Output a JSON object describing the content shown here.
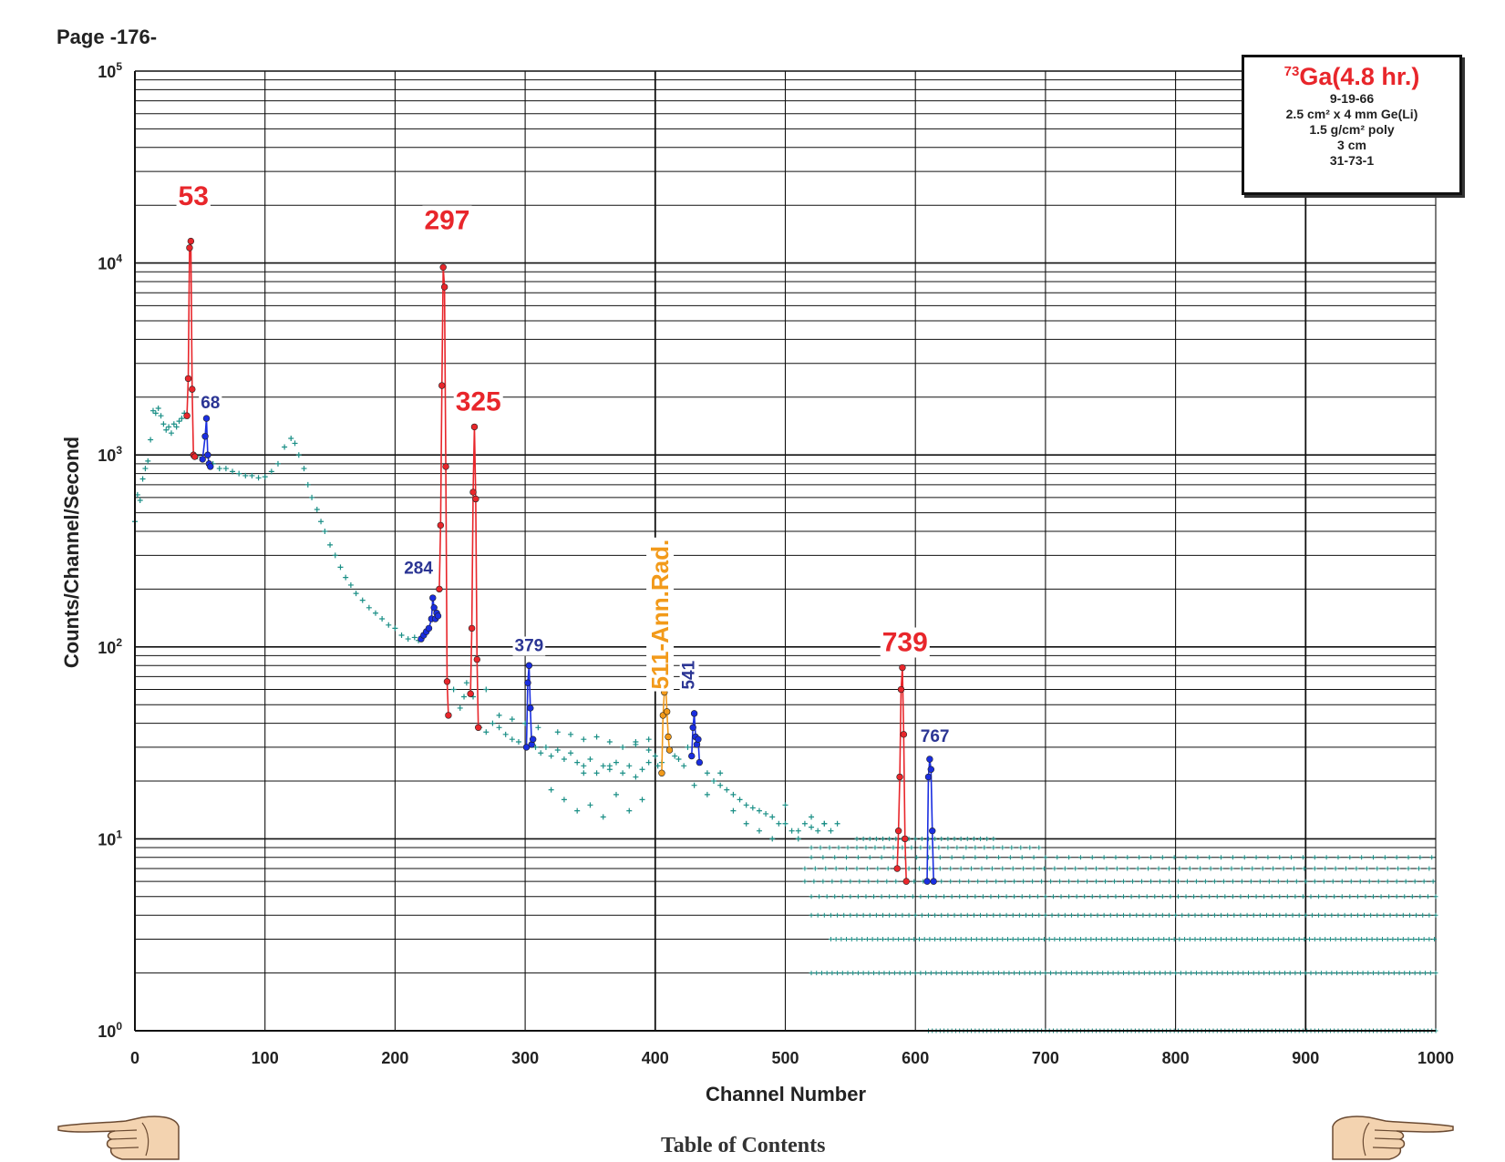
{
  "page": {
    "header": "Page -176-",
    "toc_label": "Table of Contents"
  },
  "legend": {
    "isotope_mass": "73",
    "isotope_title": "Ga(4.8 hr.)",
    "lines": [
      "9-19-66",
      "2.5 cm² x 4 mm Ge(Li)",
      "1.5 g/cm² poly",
      "3 cm",
      "31-73-1"
    ]
  },
  "colors": {
    "main_peak": "#e8262b",
    "secondary_peak": "#1a2ee0",
    "secondary_label": "#2b3594",
    "annihilation": "#f29a1a",
    "spectrum": "#1a8f86",
    "grid": "#111111"
  },
  "icons": {
    "left_nav": "hand-pointing-left-icon",
    "right_nav": "hand-pointing-right-icon"
  },
  "chart_data": {
    "type": "scatter",
    "xlabel": "Channel Number",
    "ylabel": "Counts/Channel/Second",
    "xlim": [
      0,
      1000
    ],
    "ylim": [
      1,
      100000
    ],
    "yscale": "log",
    "grid": true,
    "x_ticks": [
      "0",
      "100",
      "200",
      "300",
      "400",
      "500",
      "600",
      "700",
      "800",
      "900",
      "1000"
    ],
    "y_ticks": [
      {
        "base": "10",
        "exp": "0"
      },
      {
        "base": "10",
        "exp": "1"
      },
      {
        "base": "10",
        "exp": "2"
      },
      {
        "base": "10",
        "exp": "3"
      },
      {
        "base": "10",
        "exp": "4"
      },
      {
        "base": "10",
        "exp": "5"
      }
    ],
    "spectrum_continuum": [
      [
        0,
        450
      ],
      [
        2,
        620
      ],
      [
        4,
        580
      ],
      [
        6,
        750
      ],
      [
        8,
        850
      ],
      [
        10,
        930
      ],
      [
        12,
        1200
      ],
      [
        14,
        1700
      ],
      [
        16,
        1650
      ],
      [
        18,
        1750
      ],
      [
        20,
        1600
      ],
      [
        22,
        1450
      ],
      [
        24,
        1350
      ],
      [
        26,
        1400
      ],
      [
        28,
        1300
      ],
      [
        30,
        1450
      ],
      [
        32,
        1400
      ],
      [
        34,
        1500
      ],
      [
        36,
        1550
      ],
      [
        38,
        1650
      ],
      [
        48,
        980
      ],
      [
        60,
        900
      ],
      [
        65,
        850
      ],
      [
        70,
        850
      ],
      [
        75,
        820
      ],
      [
        80,
        800
      ],
      [
        85,
        780
      ],
      [
        90,
        780
      ],
      [
        95,
        760
      ],
      [
        100,
        770
      ],
      [
        105,
        820
      ],
      [
        110,
        900
      ],
      [
        115,
        1100
      ],
      [
        120,
        1220
      ],
      [
        123,
        1150
      ],
      [
        126,
        1000
      ],
      [
        130,
        850
      ],
      [
        133,
        700
      ],
      [
        136,
        600
      ],
      [
        140,
        520
      ],
      [
        143,
        450
      ],
      [
        146,
        400
      ],
      [
        150,
        340
      ],
      [
        154,
        300
      ],
      [
        158,
        260
      ],
      [
        162,
        230
      ],
      [
        166,
        210
      ],
      [
        170,
        190
      ],
      [
        175,
        175
      ],
      [
        180,
        160
      ],
      [
        185,
        150
      ],
      [
        190,
        140
      ],
      [
        195,
        130
      ],
      [
        200,
        125
      ],
      [
        205,
        115
      ],
      [
        210,
        110
      ],
      [
        215,
        112
      ],
      [
        218,
        108
      ],
      [
        245,
        60
      ],
      [
        250,
        48
      ],
      [
        253,
        55
      ],
      [
        255,
        65
      ],
      [
        265,
        38
      ],
      [
        270,
        36
      ],
      [
        275,
        40
      ],
      [
        280,
        38
      ],
      [
        285,
        35
      ],
      [
        290,
        33
      ],
      [
        295,
        32
      ],
      [
        308,
        30
      ],
      [
        312,
        28
      ],
      [
        316,
        30
      ],
      [
        320,
        27
      ],
      [
        325,
        29
      ],
      [
        330,
        26
      ],
      [
        335,
        28
      ],
      [
        340,
        25
      ],
      [
        345,
        24
      ],
      [
        350,
        26
      ],
      [
        355,
        22
      ],
      [
        360,
        24
      ],
      [
        365,
        23
      ],
      [
        370,
        25
      ],
      [
        375,
        22
      ],
      [
        380,
        24
      ],
      [
        385,
        21
      ],
      [
        390,
        23
      ],
      [
        395,
        25
      ],
      [
        400,
        27
      ],
      [
        402,
        24
      ],
      [
        418,
        26
      ],
      [
        422,
        24
      ],
      [
        440,
        22
      ],
      [
        445,
        20
      ],
      [
        450,
        19
      ],
      [
        455,
        18
      ],
      [
        460,
        17
      ],
      [
        465,
        16
      ],
      [
        470,
        15
      ],
      [
        475,
        14.5
      ],
      [
        480,
        14
      ],
      [
        485,
        13.5
      ],
      [
        490,
        13
      ],
      [
        495,
        12
      ],
      [
        500,
        12
      ],
      [
        505,
        11
      ],
      [
        510,
        11
      ],
      [
        515,
        12
      ],
      [
        520,
        11.5
      ],
      [
        525,
        11
      ],
      [
        530,
        12
      ],
      [
        535,
        11
      ],
      [
        540,
        12
      ]
    ],
    "spectrum_scatter_low": [
      [
        320,
        18
      ],
      [
        330,
        16
      ],
      [
        340,
        14
      ],
      [
        350,
        15
      ],
      [
        360,
        13
      ],
      [
        370,
        17
      ],
      [
        380,
        14
      ],
      [
        390,
        16
      ],
      [
        300,
        40
      ],
      [
        310,
        38
      ],
      [
        325,
        36
      ],
      [
        335,
        35
      ],
      [
        345,
        33
      ],
      [
        355,
        34
      ],
      [
        365,
        32
      ],
      [
        375,
        30
      ],
      [
        385,
        31
      ],
      [
        395,
        29
      ],
      [
        260,
        55
      ],
      [
        270,
        60
      ],
      [
        280,
        44
      ],
      [
        290,
        42
      ],
      [
        430,
        19
      ],
      [
        440,
        17
      ],
      [
        450,
        22
      ],
      [
        460,
        14
      ],
      [
        470,
        12
      ],
      [
        480,
        11
      ],
      [
        490,
        10
      ],
      [
        500,
        15
      ],
      [
        510,
        10
      ],
      [
        520,
        13
      ],
      [
        530,
        12
      ],
      [
        425,
        30
      ],
      [
        415,
        27
      ],
      [
        405,
        25
      ],
      [
        395,
        33
      ],
      [
        385,
        32
      ],
      [
        365,
        24
      ],
      [
        345,
        22
      ]
    ],
    "discrete_levels": [
      {
        "value": 10,
        "from": 555,
        "to": 660,
        "step": 5
      },
      {
        "value": 9,
        "from": 520,
        "to": 700,
        "step": 7
      },
      {
        "value": 8,
        "from": 520,
        "to": 1000,
        "step": 9
      },
      {
        "value": 7,
        "from": 515,
        "to": 1000,
        "step": 8
      },
      {
        "value": 6,
        "from": 515,
        "to": 1000,
        "step": 7
      },
      {
        "value": 5,
        "from": 520,
        "to": 1000,
        "step": 6
      },
      {
        "value": 4,
        "from": 520,
        "to": 1000,
        "step": 5
      },
      {
        "value": 3,
        "from": 535,
        "to": 1000,
        "step": 4
      },
      {
        "value": 2,
        "from": 520,
        "to": 1000,
        "step": 4
      },
      {
        "value": 1,
        "from": 610,
        "to": 1000,
        "step": 3
      }
    ],
    "peaks": [
      {
        "label": "53",
        "kind": "main",
        "label_x": 45,
        "label_y": 20000,
        "points": [
          [
            40,
            1600
          ],
          [
            41,
            2500
          ],
          [
            42,
            12000
          ],
          [
            43,
            13000
          ],
          [
            44,
            2200
          ],
          [
            45,
            1000
          ],
          [
            46,
            980
          ]
        ]
      },
      {
        "label": "297",
        "kind": "main",
        "label_x": 240,
        "label_y": 15000,
        "points": [
          [
            234,
            200
          ],
          [
            235,
            430
          ],
          [
            236,
            2300
          ],
          [
            237,
            9500
          ],
          [
            238,
            7500
          ],
          [
            239,
            870
          ],
          [
            240,
            66
          ],
          [
            241,
            44
          ]
        ]
      },
      {
        "label": "325",
        "kind": "main",
        "label_x": 264,
        "label_y": 1700,
        "points": [
          [
            258,
            57
          ],
          [
            259,
            125
          ],
          [
            260,
            640
          ],
          [
            261,
            1400
          ],
          [
            262,
            590
          ],
          [
            263,
            86
          ],
          [
            264,
            38
          ]
        ]
      },
      {
        "label": "739",
        "kind": "main",
        "label_x": 592,
        "label_y": 95,
        "points": [
          [
            586,
            7
          ],
          [
            587,
            11
          ],
          [
            588,
            21
          ],
          [
            589,
            60
          ],
          [
            590,
            78
          ],
          [
            591,
            35
          ],
          [
            592,
            10
          ],
          [
            593,
            6
          ]
        ]
      },
      {
        "label": "68",
        "kind": "secondary",
        "label_x": 58,
        "label_y": 1750,
        "points": [
          [
            52,
            950
          ],
          [
            54,
            1250
          ],
          [
            55,
            1550
          ],
          [
            56,
            1000
          ],
          [
            57,
            900
          ],
          [
            58,
            870
          ]
        ]
      },
      {
        "label": "284",
        "kind": "secondary",
        "label_x": 218,
        "label_y": 240,
        "points": [
          [
            220,
            110
          ],
          [
            222,
            115
          ],
          [
            224,
            120
          ],
          [
            226,
            125
          ],
          [
            228,
            140
          ],
          [
            229,
            180
          ],
          [
            230,
            160
          ],
          [
            231,
            140
          ],
          [
            232,
            150
          ],
          [
            233,
            145
          ]
        ]
      },
      {
        "label": "379",
        "kind": "secondary",
        "label_x": 303,
        "label_y": 95,
        "points": [
          [
            301,
            30
          ],
          [
            302,
            65
          ],
          [
            303,
            80
          ],
          [
            304,
            48
          ],
          [
            305,
            31
          ],
          [
            306,
            33
          ]
        ]
      },
      {
        "label": "541",
        "kind": "secondary",
        "label_x": 430,
        "label_y": 60,
        "vertical": true,
        "points": [
          [
            428,
            27
          ],
          [
            429,
            38
          ],
          [
            430,
            45
          ],
          [
            431,
            34
          ],
          [
            432,
            31
          ],
          [
            433,
            33
          ],
          [
            434,
            25
          ]
        ]
      },
      {
        "label": "767",
        "kind": "secondary",
        "label_x": 615,
        "label_y": 32,
        "points": [
          [
            609,
            6
          ],
          [
            610,
            21
          ],
          [
            611,
            26
          ],
          [
            612,
            23
          ],
          [
            613,
            11
          ],
          [
            614,
            6
          ]
        ]
      },
      {
        "label": "511-Ann.Rad.",
        "kind": "annihilation",
        "label_x": 410,
        "label_y": 60,
        "vertical": true,
        "points": [
          [
            405,
            22
          ],
          [
            406,
            44
          ],
          [
            407,
            58
          ],
          [
            408,
            65
          ],
          [
            409,
            46
          ],
          [
            410,
            34
          ],
          [
            411,
            29
          ]
        ]
      }
    ]
  }
}
